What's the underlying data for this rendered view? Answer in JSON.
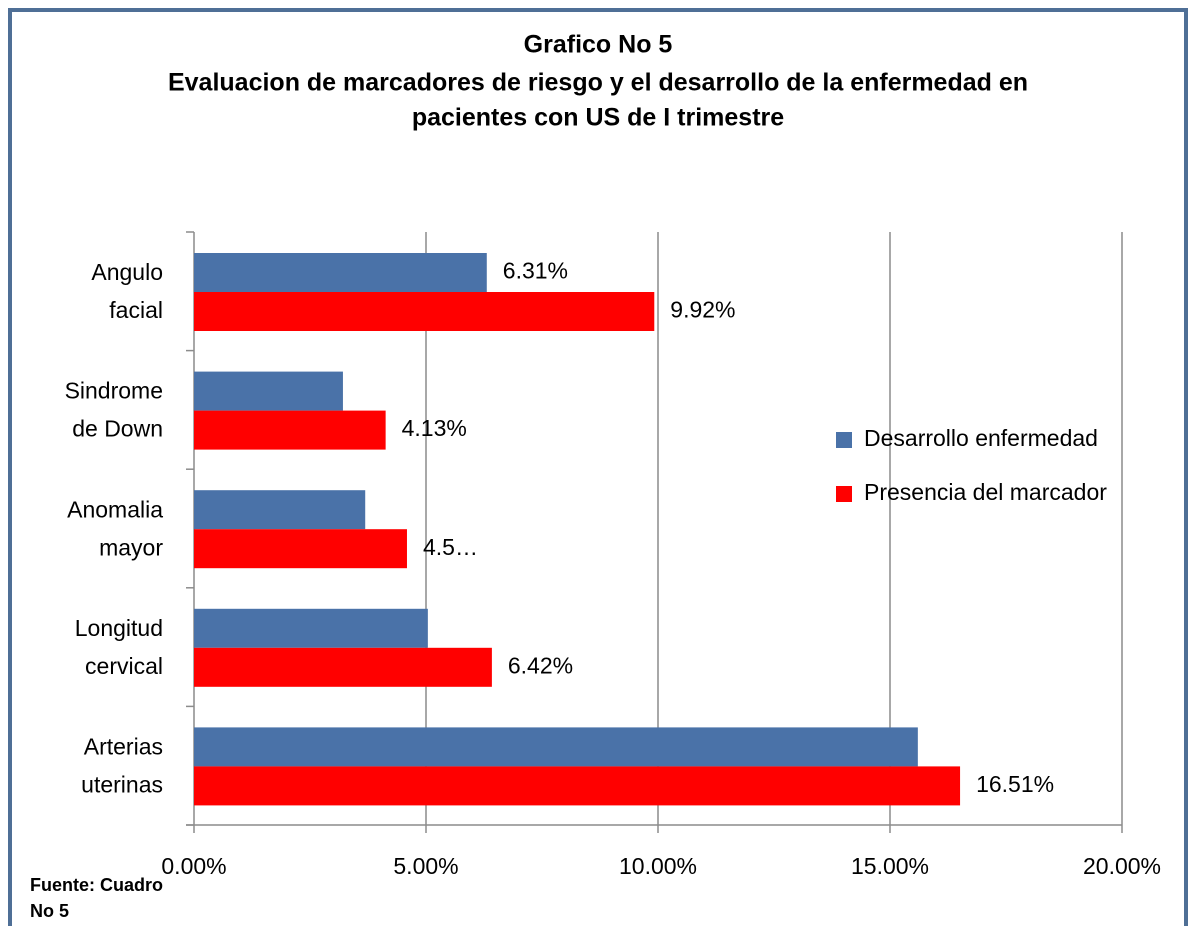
{
  "chart_data": {
    "type": "bar",
    "orientation": "horizontal",
    "title": "Grafico No 5",
    "subtitle": [
      "Evaluacion de marcadores de riesgo y el desarrollo de la enfermedad en",
      "pacientes con US de I trimestre"
    ],
    "categories": [
      [
        "Angulo",
        "facial"
      ],
      [
        "Sindrome",
        "de Down"
      ],
      [
        "Anomalia",
        "mayor"
      ],
      [
        "Longitud",
        "cervical"
      ],
      [
        "Arterias",
        "uterinas"
      ]
    ],
    "series": [
      {
        "name": "Desarrollo enfermedad",
        "color": "#4a72a8",
        "values": [
          6.31,
          3.21,
          3.69,
          5.04,
          15.6
        ],
        "value_labels": [
          "6.31%",
          null,
          null,
          null,
          null
        ]
      },
      {
        "name": "Presencia del marcador",
        "color": "#ff0000",
        "values": [
          9.92,
          4.13,
          4.59,
          6.42,
          16.51
        ],
        "value_labels": [
          "9.92%",
          "4.13%",
          "4.5…",
          "6.42%",
          "16.51%"
        ]
      }
    ],
    "xlim": [
      0,
      20
    ],
    "xticks": [
      {
        "value": 0,
        "label": "0.00%"
      },
      {
        "value": 5,
        "label": "5.00%"
      },
      {
        "value": 10,
        "label": "10.00%"
      },
      {
        "value": 15,
        "label": "15.00%"
      },
      {
        "value": 20,
        "label": "20.00%"
      }
    ],
    "grid": true,
    "legend": "right",
    "source": [
      "Fuente: Cuadro",
      "No 5"
    ]
  }
}
